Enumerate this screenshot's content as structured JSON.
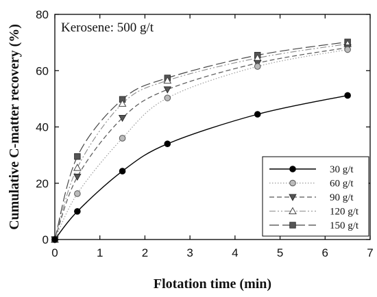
{
  "chart_data": {
    "type": "line",
    "xlabel": "Flotation time (min)",
    "ylabel": "Cumulative C-matter recovery (%)",
    "annotation": "Kerosene: 500 g/t",
    "xlim": [
      0,
      7
    ],
    "ylim": [
      0,
      80
    ],
    "xticks": [
      "0",
      "1",
      "2",
      "3",
      "4",
      "5",
      "6",
      "7"
    ],
    "yticks": [
      "0",
      "20",
      "40",
      "60",
      "80"
    ],
    "grid": false,
    "legend_position": "bottom-right",
    "x": [
      0,
      0.5,
      1.5,
      2.5,
      4.5,
      6.5
    ],
    "series": [
      {
        "name": "30 g/t",
        "values": [
          0,
          10.0,
          24.3,
          34.0,
          44.5,
          51.2
        ],
        "marker": "circle-filled",
        "line": "solid",
        "color": "#000000",
        "marker_color": "#000000"
      },
      {
        "name": "60 g/t",
        "values": [
          0,
          16.3,
          36.0,
          50.3,
          61.5,
          67.5
        ],
        "marker": "circle-grey",
        "line": "dotted",
        "color": "#9a9a9a",
        "marker_color": "#bbbbbb"
      },
      {
        "name": "90 g/t",
        "values": [
          0,
          22.3,
          43.2,
          53.3,
          62.7,
          68.2
        ],
        "marker": "triangle-down",
        "line": "dashed",
        "color": "#555555",
        "marker_color": "#555555"
      },
      {
        "name": "120 g/t",
        "values": [
          0,
          25.5,
          48.3,
          56.5,
          64.5,
          69.5
        ],
        "marker": "triangle-up-open",
        "line": "dash-dot-dot",
        "color": "#8a8a8a",
        "marker_color": "#ffffff"
      },
      {
        "name": "150 g/t",
        "values": [
          0,
          29.5,
          49.8,
          57.4,
          65.5,
          70.2
        ],
        "marker": "square",
        "line": "long-dash",
        "color": "#444444",
        "marker_color": "#555555"
      }
    ]
  }
}
